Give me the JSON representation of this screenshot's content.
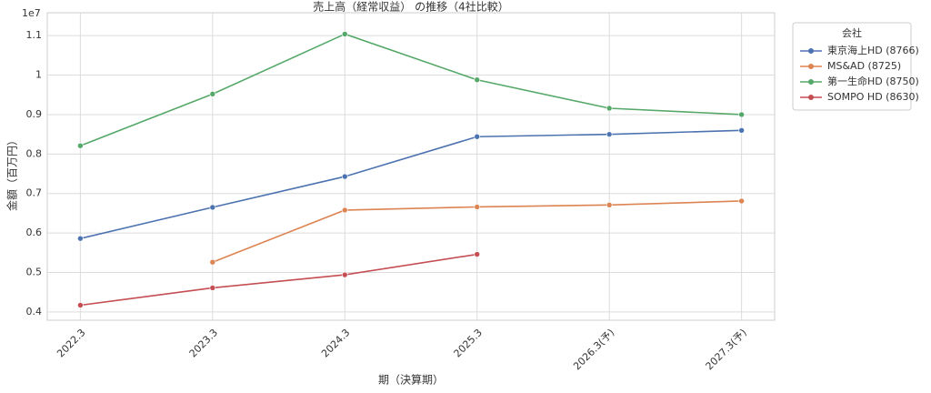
{
  "chart_data": {
    "type": "line",
    "title": "売上高（経常収益） の推移（4社比較）",
    "x_label": "期（決算期）",
    "y_label": "金額（百万円）",
    "y_offset_label": "1e7",
    "categories": [
      "2022.3",
      "2023.3",
      "2024.3",
      "2025.3",
      "2026.3(予)",
      "2027.3(予)"
    ],
    "series": [
      {
        "name": "東京海上HD (8766)",
        "color": "#4c72b0",
        "values": [
          0.586,
          0.665,
          0.743,
          0.844,
          0.85,
          0.86
        ]
      },
      {
        "name": "MS&AD (8725)",
        "color": "#dd8452",
        "values": [
          null,
          0.526,
          0.658,
          0.666,
          0.671,
          0.681
        ]
      },
      {
        "name": "第一生命HD (8750)",
        "color": "#55a868",
        "values": [
          0.821,
          0.952,
          1.104,
          0.988,
          0.916,
          0.9
        ]
      },
      {
        "name": "SOMPO HD (8630)",
        "color": "#c44e52",
        "values": [
          0.417,
          0.461,
          0.494,
          0.546,
          null,
          null
        ]
      }
    ],
    "ylim": [
      0.379,
      1.158
    ],
    "yticks": [
      0.4,
      0.5,
      0.6,
      0.7,
      0.8,
      0.9,
      1.0,
      1.1
    ],
    "legend_title": "会社",
    "legend_position": "outside-upper-right",
    "grid": true
  }
}
